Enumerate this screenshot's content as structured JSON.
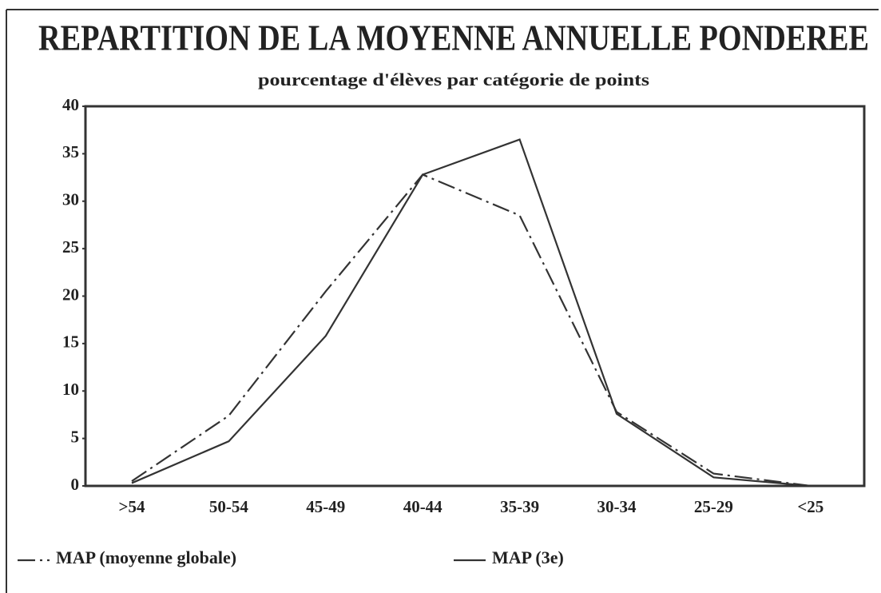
{
  "chart_data": {
    "type": "line",
    "title": "REPARTITION DE LA MOYENNE ANNUELLE PONDEREE",
    "subtitle": "pourcentage d'élèves par catégorie de points",
    "categories": [
      ">54",
      "50-54",
      "45-49",
      "40-44",
      "35-39",
      "30-34",
      "25-29",
      "<25"
    ],
    "series": [
      {
        "name": "MAP (moyenne globale)",
        "color": "#333333",
        "dash": "dashdot",
        "values": [
          0.5,
          7.4,
          20.5,
          32.8,
          28.5,
          7.8,
          1.3,
          0
        ]
      },
      {
        "name": "MAP (3e)",
        "color": "#333333",
        "dash": "solid",
        "values": [
          0.3,
          4.7,
          15.8,
          32.8,
          36.5,
          7.6,
          0.9,
          0
        ]
      }
    ],
    "ylim": [
      0,
      40
    ],
    "yticks": [
      0,
      5,
      10,
      15,
      20,
      25,
      30,
      35,
      40
    ],
    "grid": false
  }
}
